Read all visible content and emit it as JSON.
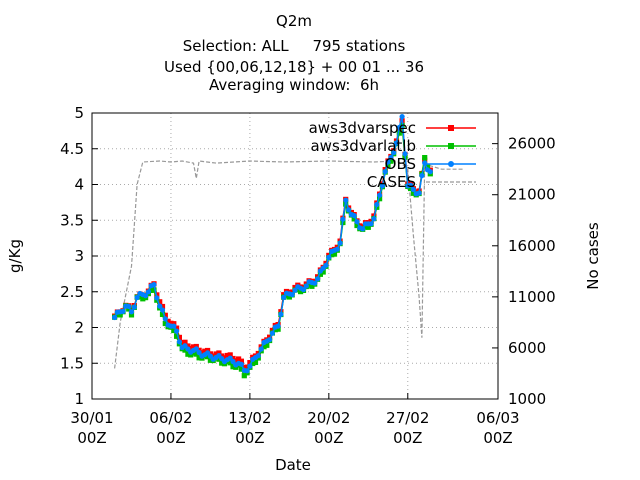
{
  "chart_data": {
    "type": "line",
    "title_lines": [
      "Q2m",
      "Selection: ALL     795 stations",
      "Used {00,06,12,18} + 00 01 ... 36",
      "Averaging window:  6h"
    ],
    "xlabel": "Date",
    "ylabel": "g/Kg",
    "y2label": "No cases",
    "x_ticks": [
      {
        "date": "2020-01-30",
        "label1": "30/01",
        "label2": "00Z"
      },
      {
        "date": "2020-02-06",
        "label1": "06/02",
        "label2": "00Z"
      },
      {
        "date": "2020-02-13",
        "label1": "13/02",
        "label2": "00Z"
      },
      {
        "date": "2020-02-20",
        "label1": "20/02",
        "label2": "00Z"
      },
      {
        "date": "2020-02-27",
        "label1": "27/02",
        "label2": "00Z"
      },
      {
        "date": "2020-03-06",
        "label1": "06/03",
        "label2": "00Z"
      }
    ],
    "xlim": [
      "2020-01-30",
      "2020-03-06"
    ],
    "ylim": [
      1,
      5
    ],
    "y_ticks": [
      "1",
      "1.5",
      "2",
      "2.5",
      "3",
      "3.5",
      "4",
      "4.5",
      "5"
    ],
    "y2lim": [
      1000,
      29000
    ],
    "y2_ticks": [
      "1000",
      "6000",
      "11000",
      "16000",
      "21000",
      "26000"
    ],
    "grid": true,
    "legend_position": "top-right",
    "colors": {
      "red": "#ff0000",
      "green": "#00c000",
      "blue": "#0080ff",
      "cases": "#999999"
    },
    "series": [
      {
        "name": "aws3dvarspec",
        "axis": "y",
        "style": "linespoints",
        "color": "#ff0000",
        "keypoints": [
          [
            "2020-02-01",
            2.15
          ],
          [
            "2020-02-02",
            2.3
          ],
          [
            "2020-02-02T12",
            2.25
          ],
          [
            "2020-02-03",
            2.42
          ],
          [
            "2020-02-04",
            2.5
          ],
          [
            "2020-02-04T12",
            2.62
          ],
          [
            "2020-02-05",
            2.35
          ],
          [
            "2020-02-05T12",
            2.18
          ],
          [
            "2020-02-06",
            2.05
          ],
          [
            "2020-02-06T12",
            2.0
          ],
          [
            "2020-02-07",
            1.78
          ],
          [
            "2020-02-08",
            1.72
          ],
          [
            "2020-02-09",
            1.66
          ],
          [
            "2020-02-10",
            1.62
          ],
          [
            "2020-02-11",
            1.6
          ],
          [
            "2020-02-12",
            1.55
          ],
          [
            "2020-02-12T12",
            1.45
          ],
          [
            "2020-02-13",
            1.5
          ],
          [
            "2020-02-14",
            1.72
          ],
          [
            "2020-02-15",
            1.95
          ],
          [
            "2020-02-15T12",
            2.05
          ],
          [
            "2020-02-16",
            2.45
          ],
          [
            "2020-02-17",
            2.55
          ],
          [
            "2020-02-18",
            2.6
          ],
          [
            "2020-02-19",
            2.7
          ],
          [
            "2020-02-20",
            3.0
          ],
          [
            "2020-02-21",
            3.2
          ],
          [
            "2020-02-21T12",
            3.8
          ],
          [
            "2020-02-22",
            3.6
          ],
          [
            "2020-02-23",
            3.4
          ],
          [
            "2020-02-24",
            3.55
          ],
          [
            "2020-02-25",
            4.2
          ],
          [
            "2020-02-26",
            4.6
          ],
          [
            "2020-02-26T12",
            4.9
          ],
          [
            "2020-02-27",
            4.0
          ],
          [
            "2020-02-28",
            3.9
          ],
          [
            "2020-02-28T12",
            4.35
          ],
          [
            "2020-02-29",
            4.2
          ]
        ]
      },
      {
        "name": "aws3dvarlatlb",
        "axis": "y",
        "style": "linespoints",
        "color": "#00c000",
        "keypoints": [
          [
            "2020-02-01",
            2.12
          ],
          [
            "2020-02-02",
            2.28
          ],
          [
            "2020-02-02T12",
            2.2
          ],
          [
            "2020-02-03",
            2.4
          ],
          [
            "2020-02-04",
            2.45
          ],
          [
            "2020-02-04T12",
            2.55
          ],
          [
            "2020-02-05",
            2.25
          ],
          [
            "2020-02-05T12",
            2.08
          ],
          [
            "2020-02-06",
            1.98
          ],
          [
            "2020-02-06T12",
            1.9
          ],
          [
            "2020-02-07",
            1.68
          ],
          [
            "2020-02-08",
            1.62
          ],
          [
            "2020-02-09",
            1.58
          ],
          [
            "2020-02-10",
            1.55
          ],
          [
            "2020-02-11",
            1.5
          ],
          [
            "2020-02-12",
            1.45
          ],
          [
            "2020-02-12T12",
            1.35
          ],
          [
            "2020-02-13",
            1.42
          ],
          [
            "2020-02-14",
            1.65
          ],
          [
            "2020-02-15",
            1.9
          ],
          [
            "2020-02-15T12",
            2.0
          ],
          [
            "2020-02-16",
            2.4
          ],
          [
            "2020-02-17",
            2.5
          ],
          [
            "2020-02-18",
            2.55
          ],
          [
            "2020-02-19",
            2.65
          ],
          [
            "2020-02-20",
            2.95
          ],
          [
            "2020-02-21",
            3.15
          ],
          [
            "2020-02-21T12",
            3.75
          ],
          [
            "2020-02-22",
            3.55
          ],
          [
            "2020-02-23",
            3.35
          ],
          [
            "2020-02-24",
            3.5
          ],
          [
            "2020-02-25",
            4.15
          ],
          [
            "2020-02-26",
            4.55
          ],
          [
            "2020-02-26T12",
            4.85
          ],
          [
            "2020-02-27",
            3.95
          ],
          [
            "2020-02-28",
            3.85
          ],
          [
            "2020-02-28T12",
            4.4
          ],
          [
            "2020-02-29",
            4.15
          ]
        ]
      },
      {
        "name": "OBS",
        "axis": "y",
        "style": "linespoints",
        "color": "#0080ff",
        "keypoints": [
          [
            "2020-02-01",
            2.14
          ],
          [
            "2020-02-02",
            2.3
          ],
          [
            "2020-02-02T12",
            2.22
          ],
          [
            "2020-02-03",
            2.42
          ],
          [
            "2020-02-04",
            2.5
          ],
          [
            "2020-02-04T12",
            2.6
          ],
          [
            "2020-02-05",
            2.3
          ],
          [
            "2020-02-05T12",
            2.12
          ],
          [
            "2020-02-06",
            2.02
          ],
          [
            "2020-02-06T12",
            1.95
          ],
          [
            "2020-02-07",
            1.72
          ],
          [
            "2020-02-08",
            1.68
          ],
          [
            "2020-02-09",
            1.62
          ],
          [
            "2020-02-10",
            1.58
          ],
          [
            "2020-02-11",
            1.55
          ],
          [
            "2020-02-12",
            1.5
          ],
          [
            "2020-02-12T12",
            1.4
          ],
          [
            "2020-02-13",
            1.46
          ],
          [
            "2020-02-14",
            1.7
          ],
          [
            "2020-02-15",
            1.92
          ],
          [
            "2020-02-15T12",
            2.02
          ],
          [
            "2020-02-16",
            2.42
          ],
          [
            "2020-02-17",
            2.52
          ],
          [
            "2020-02-18",
            2.58
          ],
          [
            "2020-02-19",
            2.68
          ],
          [
            "2020-02-20",
            2.98
          ],
          [
            "2020-02-21",
            3.18
          ],
          [
            "2020-02-21T12",
            3.78
          ],
          [
            "2020-02-22",
            3.58
          ],
          [
            "2020-02-23",
            3.38
          ],
          [
            "2020-02-24",
            3.52
          ],
          [
            "2020-02-25",
            4.18
          ],
          [
            "2020-02-26",
            4.58
          ],
          [
            "2020-02-26T12",
            4.95
          ],
          [
            "2020-02-27",
            3.98
          ],
          [
            "2020-02-28",
            3.88
          ],
          [
            "2020-02-28T12",
            4.3
          ],
          [
            "2020-02-29",
            4.18
          ]
        ]
      },
      {
        "name": "CASES",
        "axis": "y2",
        "style": "lines-dashed",
        "color": "#999999",
        "keypoints": [
          [
            "2020-02-01",
            4000
          ],
          [
            "2020-02-01T12",
            8500
          ],
          [
            "2020-02-02T12",
            14000
          ],
          [
            "2020-02-03",
            22000
          ],
          [
            "2020-02-03T12",
            24200
          ],
          [
            "2020-02-05",
            24300
          ],
          [
            "2020-02-06",
            24200
          ],
          [
            "2020-02-07",
            24300
          ],
          [
            "2020-02-08",
            24100
          ],
          [
            "2020-02-08T06",
            22600
          ],
          [
            "2020-02-08T12",
            24300
          ],
          [
            "2020-02-10",
            24100
          ],
          [
            "2020-02-13",
            24300
          ],
          [
            "2020-02-16",
            24200
          ],
          [
            "2020-02-20",
            24300
          ],
          [
            "2020-02-24",
            24200
          ],
          [
            "2020-02-26",
            24300
          ],
          [
            "2020-02-26T12",
            24000
          ],
          [
            "2020-02-27",
            23500
          ],
          [
            "2020-02-27T12",
            17000
          ],
          [
            "2020-02-28",
            11000
          ],
          [
            "2020-02-28T06",
            7000
          ],
          [
            "2020-02-28T12",
            24000
          ],
          [
            "2020-03-01",
            23500
          ],
          [
            "2020-03-03",
            23500
          ]
        ]
      }
    ]
  }
}
